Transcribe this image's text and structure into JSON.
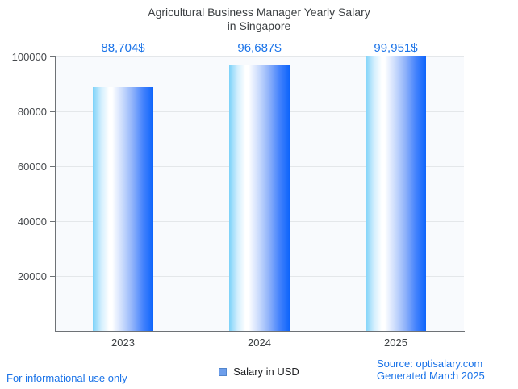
{
  "title": {
    "line1": "Agricultural Business Manager Yearly Salary",
    "line2": "in Singapore"
  },
  "chart_data": {
    "type": "bar",
    "categories": [
      "2023",
      "2024",
      "2025"
    ],
    "values": [
      88704,
      96687,
      99951
    ],
    "value_labels": [
      "88,704$",
      "96,687$",
      "99,951$"
    ],
    "series_name": "Salary in USD",
    "ylim": [
      0,
      100000
    ],
    "yticks": [
      20000,
      40000,
      60000,
      80000,
      100000
    ],
    "ytick_labels": [
      "20000",
      "40000",
      "60000",
      "80000",
      "100000"
    ],
    "xlabel": "",
    "ylabel": "",
    "grid": true,
    "legend_position": "bottom-center"
  },
  "legend": {
    "label": "Salary in USD"
  },
  "footer": {
    "disclaimer": "For informational use only",
    "source": "Source: optisalary.com",
    "generated": "Generated March 2025"
  },
  "colors": {
    "value_label_text": "#1a73e8",
    "footer_text": "#1a73e8",
    "title_text": "#3c4043",
    "tick_text": "#45484c",
    "axis_line": "#6e7276",
    "gridline": "#e4e7ea",
    "plot_background": "#f8fafd",
    "bar_gradient_left": "#7cd2f9",
    "bar_gradient_mid": "#ffffff",
    "bar_gradient_right": "#0d64fb",
    "legend_swatch": "#6d9eeb"
  }
}
